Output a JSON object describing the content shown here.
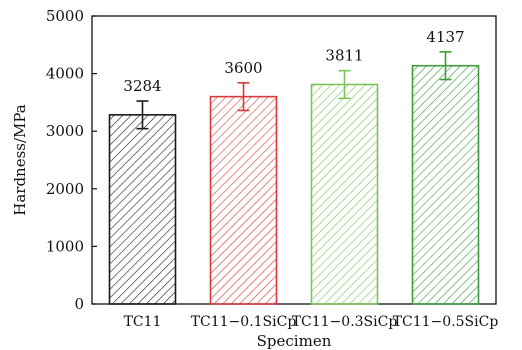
{
  "chart_data": {
    "type": "bar",
    "title": "",
    "xlabel": "Specimen",
    "ylabel": "Hardness/MPa",
    "ylim": [
      0,
      5000
    ],
    "yticks": [
      0,
      1000,
      2000,
      3000,
      4000,
      5000
    ],
    "categories": [
      "TC11",
      "TC11−0.1SiCp",
      "TC11−0.3SiCp",
      "TC11−0.5SiCp"
    ],
    "values": [
      3284,
      3600,
      3811,
      4137
    ],
    "errors": [
      240,
      240,
      240,
      240
    ],
    "data_labels": [
      "3284",
      "3600",
      "3811",
      "4137"
    ],
    "bar_colors": [
      "#1a1a1a",
      "#d93a3a",
      "#7cc35a",
      "#3f9a3a"
    ],
    "bar_fill": "diagonal-hatch",
    "grid": false,
    "legend": "none"
  }
}
